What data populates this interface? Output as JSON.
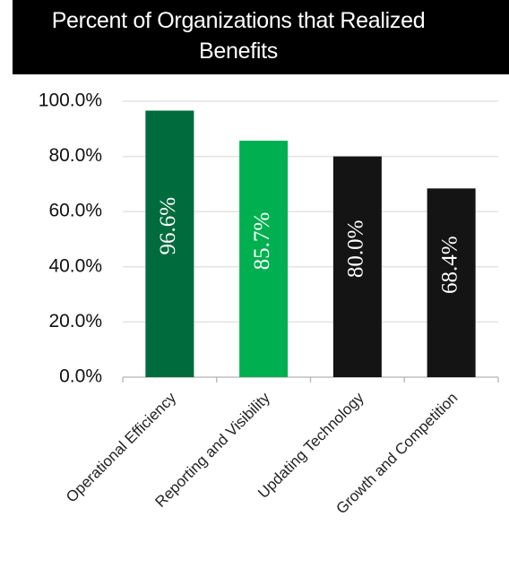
{
  "chart_data": {
    "type": "bar",
    "title": "Percent of Organizations that Realized Benefits",
    "xlabel": "",
    "ylabel": "",
    "categories": [
      "Operational Efficiency",
      "Reporting and Visibility",
      "Updating Technology",
      "Growth and Competition"
    ],
    "values": [
      96.6,
      85.7,
      80.0,
      68.4
    ],
    "data_labels": [
      "96.6%",
      "85.7%",
      "80.0%",
      "68.4%"
    ],
    "bar_colors": [
      "#006b3c",
      "#00b050",
      "#141414",
      "#141414"
    ],
    "ylim": [
      0,
      100
    ],
    "yticks": [
      0,
      20,
      40,
      60,
      80,
      100
    ],
    "ytick_labels": [
      "0.0%",
      "20.0%",
      "40.0%",
      "60.0%",
      "80.0%",
      "100.0%"
    ],
    "grid": true,
    "legend": "none"
  }
}
